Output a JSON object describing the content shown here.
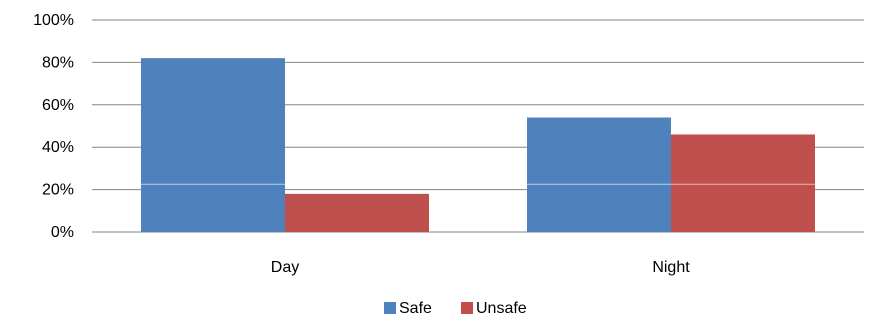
{
  "chart_data": {
    "type": "bar",
    "title": "",
    "xlabel": "",
    "ylabel": "",
    "categories": [
      "Day",
      "Night"
    ],
    "series": [
      {
        "name": "Safe",
        "values": [
          82,
          54
        ],
        "color": "#4F81BD"
      },
      {
        "name": "Unsafe",
        "values": [
          18,
          46
        ],
        "color": "#C0504D"
      }
    ],
    "ylim": [
      0,
      100
    ],
    "yticks": [
      0,
      20,
      40,
      60,
      80,
      100
    ],
    "ytick_labels": [
      "0%",
      "20%",
      "40%",
      "60%",
      "80%",
      "100%"
    ],
    "grid": true,
    "legend_position": "bottom"
  }
}
